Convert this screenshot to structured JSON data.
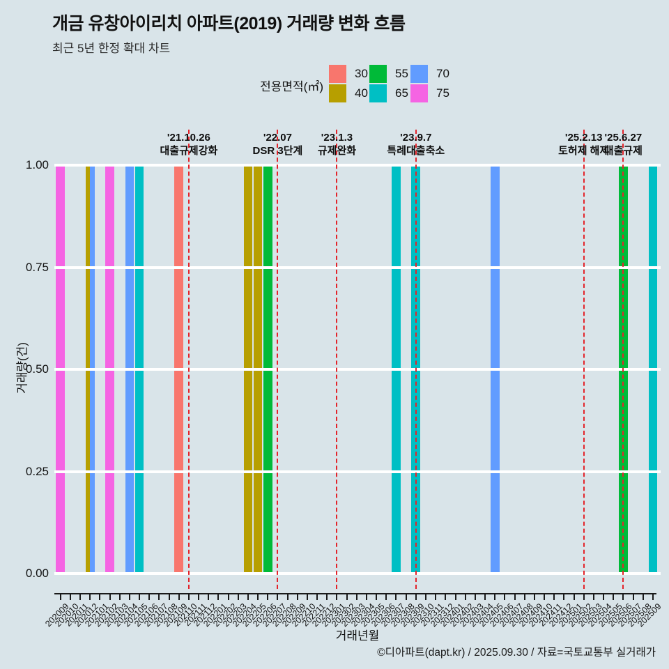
{
  "header": {
    "title": "개금 유창아이리치 아파트(2019) 거래량 변화 흐름",
    "subtitle": "최근 5년 한정 확대 차트"
  },
  "legend": {
    "title": "전용면적(㎡)",
    "items": [
      {
        "label": "30",
        "color": "#F8766D"
      },
      {
        "label": "40",
        "color": "#B79F00"
      },
      {
        "label": "55",
        "color": "#00BA38"
      },
      {
        "label": "65",
        "color": "#00BFC4"
      },
      {
        "label": "70",
        "color": "#619CFF"
      },
      {
        "label": "75",
        "color": "#F564E3"
      }
    ]
  },
  "chart_data": {
    "type": "bar",
    "title": "개금 유창아이리치 아파트(2019) 거래량 변화 흐름",
    "xlabel": "거래년월",
    "ylabel": "거래량(건)",
    "ylim": [
      0,
      1
    ],
    "grid": "white horizontal major lines",
    "legend_position": "top",
    "yticks": [
      {
        "value": 0.0,
        "label": "0.00"
      },
      {
        "value": 0.25,
        "label": "0.25"
      },
      {
        "value": 0.5,
        "label": "0.50"
      },
      {
        "value": 0.75,
        "label": "0.75"
      },
      {
        "value": 1.0,
        "label": "1.00"
      }
    ],
    "months": [
      "202009",
      "202010",
      "202011",
      "202012",
      "202101",
      "202102",
      "202103",
      "202104",
      "202105",
      "202106",
      "202107",
      "202108",
      "202109",
      "202110",
      "202111",
      "202112",
      "202201",
      "202202",
      "202203",
      "202204",
      "202205",
      "202206",
      "202207",
      "202208",
      "202209",
      "202210",
      "202211",
      "202212",
      "202301",
      "202302",
      "202303",
      "202304",
      "202305",
      "202306",
      "202307",
      "202308",
      "202309",
      "202310",
      "202311",
      "202312",
      "202401",
      "202402",
      "202403",
      "202404",
      "202405",
      "202406",
      "202407",
      "202408",
      "202409",
      "202410",
      "202411",
      "202412",
      "202501",
      "202502",
      "202503",
      "202504",
      "202505",
      "202506",
      "202507",
      "202508",
      "202509"
    ],
    "area_colors": {
      "30": "#F8766D",
      "40": "#B79F00",
      "55": "#00BA38",
      "65": "#00BFC4",
      "70": "#619CFF",
      "75": "#F564E3"
    },
    "transactions": [
      {
        "month": "202009",
        "areas": [
          75
        ],
        "value": 1
      },
      {
        "month": "202012",
        "areas": [
          40,
          70
        ],
        "value": 1
      },
      {
        "month": "202102",
        "areas": [
          75
        ],
        "value": 1
      },
      {
        "month": "202104",
        "areas": [
          70
        ],
        "value": 1
      },
      {
        "month": "202105",
        "areas": [
          65
        ],
        "value": 1
      },
      {
        "month": "202109",
        "areas": [
          30
        ],
        "value": 1
      },
      {
        "month": "202204",
        "areas": [
          40
        ],
        "value": 1
      },
      {
        "month": "202205",
        "areas": [
          40
        ],
        "value": 1
      },
      {
        "month": "202206",
        "areas": [
          55
        ],
        "value": 1
      },
      {
        "month": "202307",
        "areas": [
          65
        ],
        "value": 1
      },
      {
        "month": "202309",
        "areas": [
          65
        ],
        "value": 1
      },
      {
        "month": "202405",
        "areas": [
          70
        ],
        "value": 1
      },
      {
        "month": "202506",
        "areas": [
          55
        ],
        "value": 1
      },
      {
        "month": "202509",
        "areas": [
          65
        ],
        "value": 1
      }
    ],
    "events": [
      {
        "date": "'21.10.26",
        "label": "대출규제강화",
        "month": "202110"
      },
      {
        "date": "'22.07",
        "label": "DSR 3단계",
        "month": "202207"
      },
      {
        "date": "'23.1.3",
        "label": "규제완화",
        "month": "202301"
      },
      {
        "date": "'23.9.7",
        "label": "특례대출축소",
        "month": "202309"
      },
      {
        "date": "'25.2.13",
        "label": "토허제 해제",
        "month": "202502"
      },
      {
        "date": "'25.6.27",
        "label": "대출규제",
        "month": "202506"
      }
    ]
  },
  "colors": {
    "background": "#d9e4e9",
    "event_line": "#e3242b",
    "grid": "#ffffff",
    "axis": "#1a1a1a"
  },
  "footer": {
    "credit": "©디아파트(dapt.kr) / 2025.09.30 / 자료=국토교통부 실거래가"
  }
}
